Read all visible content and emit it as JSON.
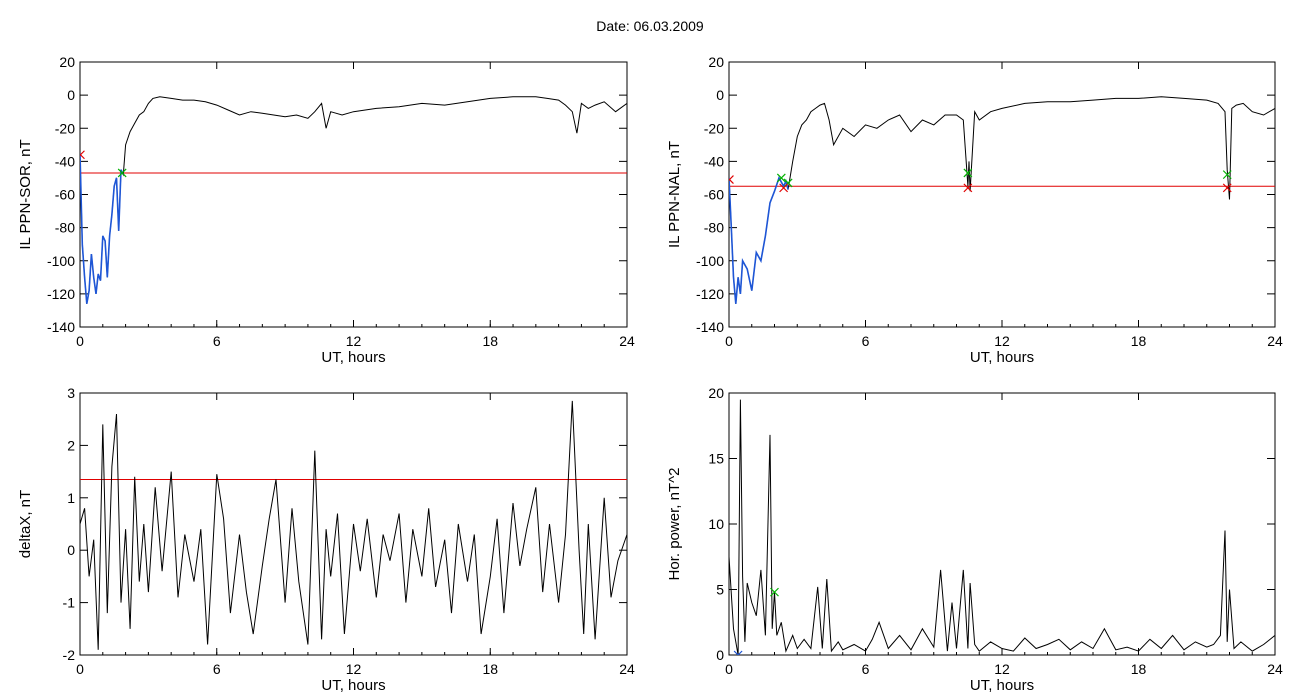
{
  "title": "Date:  06.03.2009",
  "chart_data": [
    {
      "type": "line",
      "panel": "top-left",
      "xlabel": "UT, hours",
      "ylabel": "IL PPN-SOR, nT",
      "xlim": [
        0,
        24
      ],
      "ylim": [
        -140,
        20
      ],
      "xticks": [
        0,
        6,
        12,
        18,
        24
      ],
      "yticks": [
        -140,
        -120,
        -100,
        -80,
        -60,
        -40,
        -20,
        0,
        20
      ],
      "threshold": -47,
      "series": [
        {
          "color": "#000000",
          "x": [
            0,
            0.1,
            0.2,
            0.3,
            0.4,
            0.5,
            0.6,
            0.7,
            0.8,
            0.9,
            1.0,
            1.1,
            1.2,
            1.3,
            1.4,
            1.5,
            1.6,
            1.7,
            1.8,
            1.9,
            2.0,
            2.2,
            2.4,
            2.6,
            2.8,
            3.0,
            3.2,
            3.5,
            4,
            4.5,
            5,
            5.5,
            6,
            6.5,
            7,
            7.5,
            8,
            8.5,
            9,
            9.5,
            10,
            10.3,
            10.6,
            10.8,
            11,
            11.5,
            12,
            13,
            14,
            15,
            16,
            17,
            18,
            19,
            20,
            20.5,
            21,
            21.3,
            21.6,
            21.8,
            22,
            22.3,
            22.6,
            23,
            23.5,
            24
          ],
          "y": [
            -35,
            -90,
            -110,
            -126,
            -118,
            -96,
            -110,
            -120,
            -108,
            -112,
            -85,
            -88,
            -110,
            -85,
            -72,
            -55,
            -50,
            -82,
            -45,
            -48,
            -30,
            -22,
            -17,
            -12,
            -10,
            -5,
            -2,
            -1,
            -2,
            -3,
            -3,
            -4,
            -6,
            -9,
            -12,
            -10,
            -11,
            -12,
            -13,
            -12,
            -14,
            -10,
            -5,
            -20,
            -10,
            -12,
            -10,
            -8,
            -7,
            -5,
            -6,
            -4,
            -2,
            -1,
            -1,
            -2,
            -3,
            -6,
            -10,
            -23,
            -5,
            -8,
            -6,
            -4,
            -10,
            -5
          ]
        },
        {
          "color": "#1e56d6",
          "x": [
            0,
            0.1,
            0.2,
            0.3,
            0.4,
            0.5,
            0.6,
            0.7,
            0.8,
            0.9,
            1.0,
            1.1,
            1.2,
            1.3,
            1.4,
            1.5,
            1.6,
            1.7,
            1.8,
            1.9
          ],
          "y": [
            -35,
            -90,
            -110,
            -126,
            -118,
            -96,
            -110,
            -120,
            -108,
            -112,
            -85,
            -88,
            -110,
            -85,
            -72,
            -55,
            -50,
            -82,
            -45,
            -48
          ]
        }
      ],
      "markers": [
        {
          "x": 1.85,
          "y": -47,
          "color": "#00b000"
        },
        {
          "x": 0.02,
          "y": -36,
          "color": "#e00000"
        }
      ]
    },
    {
      "type": "line",
      "panel": "top-right",
      "xlabel": "UT, hours",
      "ylabel": "IL PPN-NAL, nT",
      "xlim": [
        0,
        24
      ],
      "ylim": [
        -140,
        20
      ],
      "xticks": [
        0,
        6,
        12,
        18,
        24
      ],
      "yticks": [
        -140,
        -120,
        -100,
        -80,
        -60,
        -40,
        -20,
        0,
        20
      ],
      "threshold": -55,
      "series": [
        {
          "color": "#000000",
          "x": [
            0,
            0.1,
            0.2,
            0.3,
            0.4,
            0.5,
            0.6,
            0.8,
            1.0,
            1.2,
            1.4,
            1.6,
            1.8,
            2.0,
            2.2,
            2.4,
            2.5,
            2.6,
            2.8,
            3.0,
            3.2,
            3.4,
            3.6,
            3.8,
            4.0,
            4.2,
            4.4,
            4.6,
            5,
            5.5,
            6,
            6.5,
            7,
            7.5,
            8,
            8.5,
            9,
            9.5,
            10,
            10.3,
            10.5,
            10.55,
            10.6,
            10.8,
            11,
            11.5,
            12,
            13,
            14,
            15,
            16,
            17,
            18,
            19,
            20,
            21,
            21.5,
            21.8,
            21.9,
            22.0,
            22.1,
            22.3,
            22.6,
            23,
            23.5,
            24
          ],
          "y": [
            -50,
            -80,
            -110,
            -126,
            -110,
            -120,
            -100,
            -105,
            -118,
            -95,
            -100,
            -85,
            -65,
            -58,
            -50,
            -55,
            -52,
            -57,
            -40,
            -25,
            -18,
            -15,
            -10,
            -8,
            -6,
            -5,
            -15,
            -30,
            -20,
            -25,
            -18,
            -20,
            -15,
            -12,
            -22,
            -15,
            -18,
            -12,
            -12,
            -15,
            -55,
            -40,
            -58,
            -10,
            -15,
            -10,
            -8,
            -5,
            -4,
            -4,
            -3,
            -2,
            -2,
            -1,
            -2,
            -3,
            -5,
            -10,
            -45,
            -63,
            -8,
            -6,
            -5,
            -10,
            -12,
            -8
          ]
        },
        {
          "color": "#1e56d6",
          "x": [
            0,
            0.1,
            0.2,
            0.3,
            0.4,
            0.5,
            0.6,
            0.8,
            1.0,
            1.2,
            1.4,
            1.6,
            1.8,
            2.0,
            2.2,
            2.4,
            2.5,
            2.6
          ],
          "y": [
            -50,
            -80,
            -110,
            -126,
            -110,
            -120,
            -100,
            -105,
            -118,
            -95,
            -100,
            -85,
            -65,
            -58,
            -50,
            -55,
            -52,
            -57
          ]
        }
      ],
      "markers": [
        {
          "x": 2.3,
          "y": -50,
          "color": "#00b000"
        },
        {
          "x": 2.6,
          "y": -53,
          "color": "#00b000"
        },
        {
          "x": 10.5,
          "y": -47,
          "color": "#00b000"
        },
        {
          "x": 21.9,
          "y": -48,
          "color": "#00b000"
        },
        {
          "x": 0.02,
          "y": -51,
          "color": "#e00000"
        },
        {
          "x": 2.4,
          "y": -56,
          "color": "#e00000"
        },
        {
          "x": 10.5,
          "y": -56,
          "color": "#e00000"
        },
        {
          "x": 21.9,
          "y": -56,
          "color": "#e00000"
        }
      ]
    },
    {
      "type": "line",
      "panel": "bottom-left",
      "xlabel": "UT, hours",
      "ylabel": "deltaX, nT",
      "xlim": [
        0,
        24
      ],
      "ylim": [
        -2,
        3
      ],
      "xticks": [
        0,
        6,
        12,
        18,
        24
      ],
      "yticks": [
        -2,
        -1,
        0,
        1,
        2,
        3
      ],
      "threshold": 1.35,
      "series": [
        {
          "color": "#000000",
          "x": [
            0,
            0.2,
            0.4,
            0.6,
            0.8,
            1.0,
            1.2,
            1.4,
            1.6,
            1.8,
            2.0,
            2.2,
            2.4,
            2.6,
            2.8,
            3.0,
            3.3,
            3.6,
            4.0,
            4.3,
            4.6,
            5.0,
            5.3,
            5.6,
            6.0,
            6.3,
            6.6,
            7.0,
            7.3,
            7.6,
            8.0,
            8.3,
            8.6,
            9.0,
            9.3,
            9.6,
            10.0,
            10.3,
            10.6,
            10.8,
            11.0,
            11.3,
            11.6,
            12.0,
            12.3,
            12.6,
            13.0,
            13.3,
            13.6,
            14.0,
            14.3,
            14.6,
            15.0,
            15.3,
            15.6,
            16.0,
            16.3,
            16.6,
            17.0,
            17.3,
            17.6,
            18.0,
            18.3,
            18.6,
            19.0,
            19.3,
            19.6,
            20.0,
            20.3,
            20.6,
            21.0,
            21.3,
            21.6,
            21.9,
            22.1,
            22.3,
            22.6,
            23.0,
            23.3,
            23.6,
            24.0
          ],
          "y": [
            0.5,
            0.8,
            -0.5,
            0.2,
            -1.9,
            2.4,
            -1.2,
            1.6,
            2.6,
            -1.0,
            0.4,
            -1.5,
            1.4,
            -0.6,
            0.5,
            -0.8,
            1.2,
            -0.4,
            1.5,
            -0.9,
            0.3,
            -0.6,
            0.4,
            -1.8,
            1.45,
            0.6,
            -1.2,
            0.3,
            -0.8,
            -1.6,
            -0.3,
            0.6,
            1.35,
            -1.0,
            0.8,
            -0.6,
            -1.8,
            1.9,
            -1.7,
            0.4,
            -0.5,
            0.7,
            -1.6,
            0.5,
            -0.4,
            0.6,
            -0.9,
            0.3,
            -0.2,
            0.7,
            -1.0,
            0.4,
            -0.5,
            0.8,
            -0.7,
            0.2,
            -1.2,
            0.5,
            -0.6,
            0.3,
            -1.6,
            -0.5,
            0.6,
            -1.2,
            0.9,
            -0.3,
            0.4,
            1.2,
            -0.8,
            0.5,
            -1.0,
            0.3,
            2.85,
            0.0,
            -1.6,
            0.5,
            -1.7,
            1.0,
            -0.9,
            -0.2,
            0.3
          ]
        }
      ],
      "markers": []
    },
    {
      "type": "line",
      "panel": "bottom-right",
      "xlabel": "UT, hours",
      "ylabel": "Hor. power, nT^2",
      "xlim": [
        0,
        24
      ],
      "ylim": [
        0,
        20
      ],
      "xticks": [
        0,
        6,
        12,
        18,
        24
      ],
      "yticks": [
        0,
        5,
        10,
        15,
        20
      ],
      "threshold": null,
      "series": [
        {
          "color": "#000000",
          "x": [
            0,
            0.2,
            0.4,
            0.5,
            0.6,
            0.7,
            0.8,
            1.0,
            1.2,
            1.4,
            1.6,
            1.8,
            1.9,
            2.0,
            2.1,
            2.3,
            2.5,
            2.8,
            3.0,
            3.3,
            3.6,
            3.9,
            4.1,
            4.3,
            4.5,
            4.8,
            5.0,
            5.5,
            6.0,
            6.3,
            6.6,
            7.0,
            7.5,
            8.0,
            8.5,
            9.0,
            9.3,
            9.6,
            9.8,
            10.0,
            10.3,
            10.5,
            10.6,
            10.8,
            11.0,
            11.5,
            12.0,
            12.5,
            13.0,
            13.5,
            14.0,
            14.5,
            15.0,
            15.5,
            16.0,
            16.5,
            17.0,
            17.5,
            18.0,
            18.5,
            19.0,
            19.5,
            20.0,
            20.5,
            21.0,
            21.3,
            21.6,
            21.8,
            21.9,
            22.0,
            22.2,
            22.5,
            23.0,
            23.5,
            24.0
          ],
          "y": [
            7.5,
            2.0,
            0.0,
            19.5,
            6.0,
            1.0,
            5.5,
            4.0,
            3.0,
            6.5,
            1.5,
            16.8,
            2.0,
            4.8,
            1.5,
            2.5,
            0.3,
            1.5,
            0.5,
            1.2,
            0.5,
            5.2,
            0.5,
            5.8,
            0.3,
            1.0,
            0.4,
            0.8,
            0.3,
            1.2,
            2.5,
            0.5,
            1.5,
            0.4,
            2.0,
            0.6,
            6.5,
            0.3,
            4.0,
            0.5,
            6.5,
            0.5,
            5.5,
            0.8,
            0.3,
            1.0,
            0.5,
            0.3,
            1.3,
            0.5,
            0.8,
            1.2,
            0.4,
            1.0,
            0.5,
            2.0,
            0.4,
            0.6,
            0.3,
            1.2,
            0.5,
            1.5,
            0.4,
            1.0,
            0.6,
            0.8,
            1.5,
            9.5,
            1.0,
            5.0,
            0.5,
            1.0,
            0.3,
            0.8,
            1.5
          ]
        }
      ],
      "markers": [
        {
          "x": 0.4,
          "y": 0.0,
          "color": "#1e56d6"
        },
        {
          "x": 2.0,
          "y": 4.8,
          "color": "#00b000"
        }
      ]
    }
  ]
}
